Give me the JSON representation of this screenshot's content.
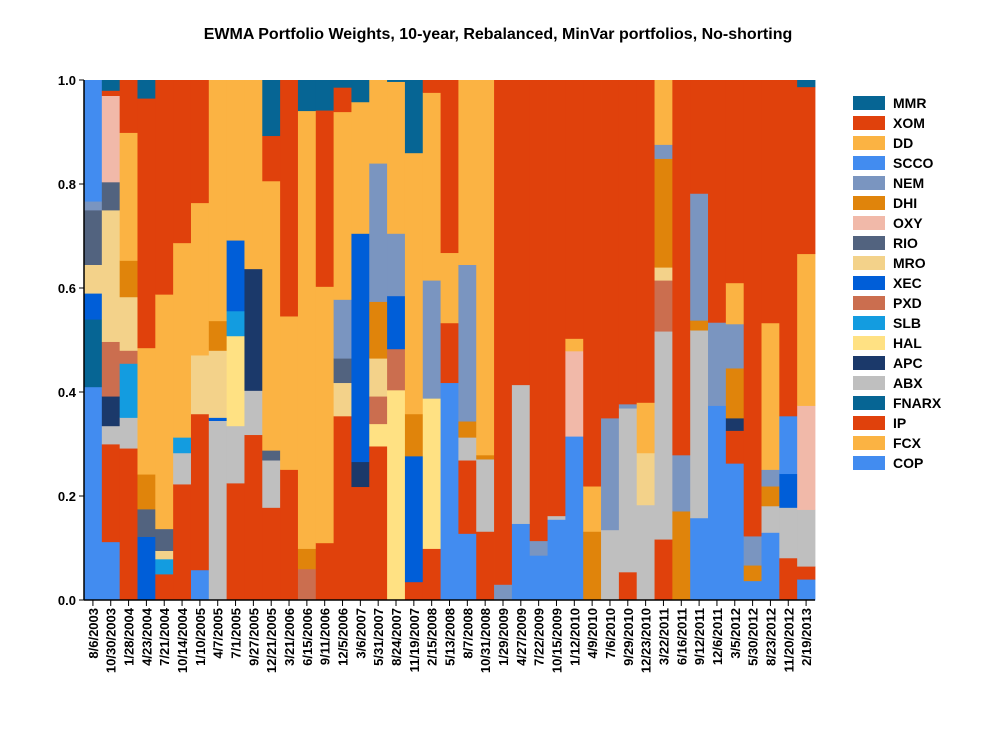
{
  "chart_data": {
    "type": "bar",
    "stacked": true,
    "title": "EWMA Portfolio Weights, 10-year, Rebalanced, MinVar portfolios, No-shorting",
    "xlabel": "",
    "ylabel": "",
    "ylim": [
      0,
      1
    ],
    "yticks": [
      "0.0",
      "0.2",
      "0.4",
      "0.6",
      "0.8",
      "1.0"
    ],
    "legend_position": "right",
    "legend": [
      "MMR",
      "XOM",
      "DD",
      "SCCO",
      "NEM",
      "DHI",
      "OXY",
      "RIO",
      "MRO",
      "XEC",
      "PXD",
      "SLB",
      "HAL",
      "APC",
      "ABX",
      "FNARX",
      "IP",
      "FCX",
      "COP"
    ],
    "colors": {
      "MMR": "#066594",
      "XOM": "#e0410c",
      "DD": "#fbb343",
      "SCCO": "#428cf0",
      "NEM": "#7a95c0",
      "DHI": "#e0840b",
      "OXY": "#f1b9a9",
      "RIO": "#52637f",
      "MRO": "#f3d28a",
      "XEC": "#005ed8",
      "PXD": "#cb6e4f",
      "SLB": "#139ce0",
      "HAL": "#ffe183",
      "APC": "#1b396a",
      "ABX": "#bfbfbf",
      "FNARX": "#066594",
      "IP": "#e0410c",
      "FCX": "#fbb343",
      "COP": "#428cf0"
    },
    "stack_order": [
      "COP",
      "FCX",
      "IP",
      "FNARX",
      "ABX",
      "APC",
      "HAL",
      "SLB",
      "PXD",
      "XEC",
      "MRO",
      "RIO",
      "OXY",
      "DHI",
      "NEM",
      "SCCO",
      "DD",
      "XOM",
      "MMR"
    ],
    "categories": [
      "8/6/2003",
      "10/30/2003",
      "1/28/2004",
      "4/23/2004",
      "7/21/2004",
      "10/14/2004",
      "1/10/2005",
      "4/7/2005",
      "7/1/2005",
      "9/27/2005",
      "12/21/2005",
      "3/21/2006",
      "6/15/2006",
      "9/11/2006",
      "12/5/2006",
      "3/6/2007",
      "5/31/2007",
      "8/24/2007",
      "11/19/2007",
      "2/15/2008",
      "5/13/2008",
      "8/7/2008",
      "10/31/2008",
      "1/29/2009",
      "4/27/2009",
      "7/22/2009",
      "10/15/2009",
      "1/12/2010",
      "4/9/2010",
      "7/6/2010",
      "9/29/2010",
      "12/23/2010",
      "3/22/2011",
      "6/16/2011",
      "9/12/2011",
      "12/6/2011",
      "3/5/2012",
      "5/30/2012",
      "8/23/2012",
      "11/20/2012",
      "2/19/2013"
    ],
    "weights": [
      {
        "COP": 0.41,
        "FNARX": 0.13,
        "XEC": 0.05,
        "MRO": 0.055,
        "RIO": 0.105,
        "NEM": 0.017,
        "SCCO": 0.233
      },
      {
        "COP": 0.112,
        "IP": 0.188,
        "ABX": 0.035,
        "APC": 0.057,
        "PXD": 0.105,
        "MRO": 0.253,
        "RIO": 0.054,
        "OXY": 0.166,
        "XOM": 0.01,
        "MMR": 0.02
      },
      {
        "IP": 0.292,
        "ABX": 0.059,
        "SLB": 0.104,
        "PXD": 0.025,
        "MRO": 0.103,
        "DHI": 0.07,
        "DD": 0.246,
        "XOM": 0.101
      },
      {
        "XEC": 0.122,
        "RIO": 0.053,
        "DHI": 0.067,
        "DD": 0.243,
        "XOM": 0.48,
        "MMR": 0.035
      },
      {
        "IP": 0.05,
        "SLB": 0.029,
        "MRO": 0.016,
        "RIO": 0.042,
        "DD": 0.451,
        "XOM": 0.412
      },
      {
        "IP": 0.223,
        "ABX": 0.06,
        "SLB": 0.03,
        "DD": 0.374,
        "XOM": 0.313
      },
      {
        "COP": 0.058,
        "IP": 0.3,
        "MRO": 0.113,
        "DD": 0.293,
        "XOM": 0.236
      },
      {
        "ABX": 0.345,
        "XEC": 0.006,
        "MRO": 0.129,
        "DHI": 0.057,
        "DD": 0.463
      },
      {
        "IP": 0.225,
        "ABX": 0.11,
        "HAL": 0.173,
        "SLB": 0.048,
        "XEC": 0.136,
        "DD": 0.308
      },
      {
        "IP": 0.318,
        "ABX": 0.085,
        "APC": 0.234,
        "DD": 0.363
      },
      {
        "IP": 0.178,
        "ABX": 0.091,
        "RIO": 0.019,
        "DD": 0.518,
        "XOM": 0.087,
        "MMR": 0.107
      },
      {
        "IP": 0.251,
        "DD": 0.295,
        "XOM": 0.454
      },
      {
        "PXD": 0.06,
        "DHI": 0.039,
        "DD": 0.842,
        "MMR": 0.059
      },
      {
        "IP": 0.11,
        "DD": 0.493,
        "XOM": 0.339,
        "MMR": 0.058
      },
      {
        "IP": 0.354,
        "MRO": 0.064,
        "RIO": 0.047,
        "NEM": 0.113,
        "DD": 0.361,
        "XOM": 0.047,
        "MMR": 0.014
      },
      {
        "IP": 0.218,
        "APC": 0.048,
        "XEC": 0.439,
        "DD": 0.253,
        "MMR": 0.042
      },
      {
        "IP": 0.296,
        "HAL": 0.043,
        "PXD": 0.053,
        "MRO": 0.073,
        "DHI": 0.109,
        "NEM": 0.266,
        "DD": 0.16
      },
      {
        "HAL": 0.404,
        "PXD": 0.079,
        "XEC": 0.102,
        "NEM": 0.12,
        "DD": 0.292,
        "MMR": 0.003
      },
      {
        "IP": 0.035,
        "XEC": 0.242,
        "DHI": 0.081,
        "DD": 0.502,
        "MMR": 0.14
      },
      {
        "IP": 0.099,
        "HAL": 0.289,
        "NEM": 0.227,
        "DD": 0.361,
        "XOM": 0.024
      },
      {
        "COP": 0.418,
        "IP": 0.115,
        "DD": 0.135,
        "XOM": 0.332
      },
      {
        "COP": 0.128,
        "IP": 0.141,
        "ABX": 0.044,
        "DHI": 0.031,
        "NEM": 0.301,
        "DD": 0.355
      },
      {
        "IP": 0.132,
        "ABX": 0.139,
        "DHI": 0.008,
        "DD": 0.721
      },
      {
        "NEM": 0.03,
        "XOM": 0.97
      },
      {
        "COP": 0.147,
        "ABX": 0.267,
        "XOM": 0.586
      },
      {
        "COP": 0.086,
        "NEM": 0.028,
        "XOM": 0.886
      },
      {
        "COP": 0.155,
        "ABX": 0.007,
        "XOM": 0.838
      },
      {
        "COP": 0.315,
        "OXY": 0.164,
        "DD": 0.024,
        "XOM": 0.497
      },
      {
        "DHI": 0.132,
        "DD": 0.087,
        "XOM": 0.781
      },
      {
        "ABX": 0.135,
        "NEM": 0.215,
        "XOM": 0.65
      },
      {
        "IP": 0.054,
        "ABX": 0.315,
        "NEM": 0.008,
        "XOM": 0.623
      },
      {
        "ABX": 0.183,
        "MRO": 0.1,
        "DD": 0.097,
        "XOM": 0.62
      },
      {
        "IP": 0.117,
        "ABX": 0.4,
        "PXD": 0.098,
        "MRO": 0.025,
        "DHI": 0.209,
        "NEM": 0.027,
        "DD": 0.124
      },
      {
        "DHI": 0.171,
        "NEM": 0.108,
        "XOM": 0.721
      },
      {
        "COP": 0.158,
        "ABX": 0.361,
        "DHI": 0.019,
        "NEM": 0.244,
        "XOM": 0.218
      },
      {
        "COP": 0.374,
        "NEM": 0.16,
        "XOM": 0.466
      },
      {
        "COP": 0.263,
        "IP": 0.063,
        "APC": 0.024,
        "DHI": 0.096,
        "NEM": 0.085,
        "DD": 0.079,
        "XOM": 0.39
      },
      {
        "COP": 0.037,
        "DHI": 0.03,
        "NEM": 0.056,
        "XOM": 0.877
      },
      {
        "COP": 0.13,
        "ABX": 0.051,
        "DHI": 0.038,
        "NEM": 0.032,
        "DD": 0.282,
        "XOM": 0.467
      },
      {
        "IP": 0.081,
        "ABX": 0.097,
        "XEC": 0.065,
        "SCCO": 0.111,
        "XOM": 0.646
      },
      {
        "COP": 0.04,
        "IP": 0.025,
        "ABX": 0.109,
        "OXY": 0.2,
        "DD": 0.292,
        "XOM": 0.321,
        "MMR": 0.013
      }
    ]
  }
}
